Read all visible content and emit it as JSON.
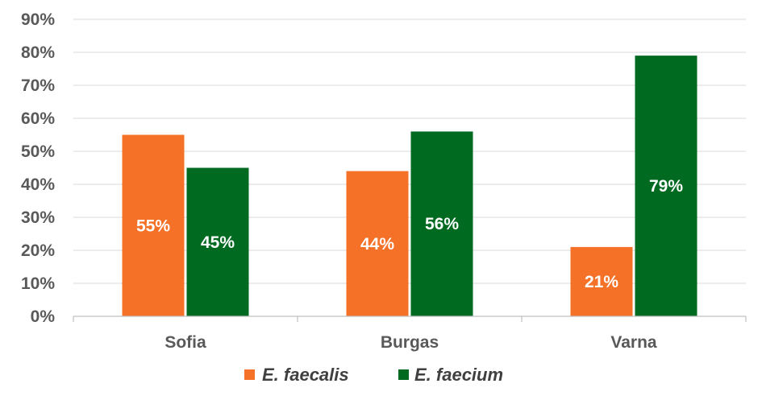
{
  "chart_data": {
    "type": "bar",
    "categories": [
      "Sofia",
      "Burgas",
      "Varna"
    ],
    "series": [
      {
        "name": "E. faecalis",
        "values": [
          55,
          44,
          21
        ],
        "color": "#F57127"
      },
      {
        "name": "E. faecium",
        "values": [
          45,
          56,
          79
        ],
        "color": "#006A21"
      }
    ],
    "data_labels": [
      [
        "55%",
        "44%",
        "21%"
      ],
      [
        "45%",
        "56%",
        "79%"
      ]
    ],
    "ylim": [
      0,
      90
    ],
    "y_ticks": [
      "0%",
      "10%",
      "20%",
      "30%",
      "40%",
      "50%",
      "60%",
      "70%",
      "80%",
      "90%"
    ],
    "grid": true,
    "legend_position": "bottom",
    "title": "",
    "xlabel": "",
    "ylabel": ""
  }
}
